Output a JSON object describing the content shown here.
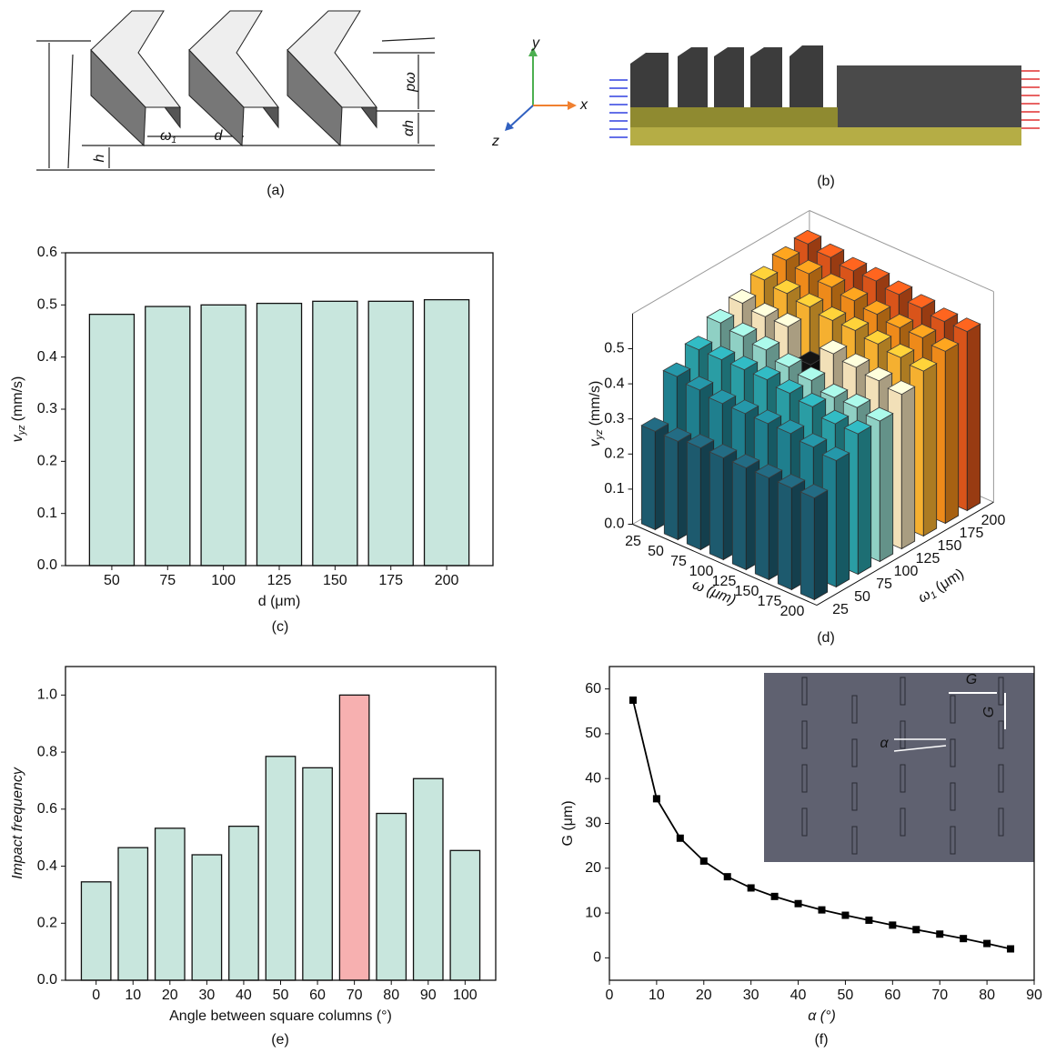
{
  "figure_a": {
    "caption": "(a)",
    "labels": {
      "w1": "ω",
      "w1_sub": "1",
      "d": "d",
      "pw": "pω",
      "ah": "αh",
      "h": "h"
    }
  },
  "figure_b": {
    "caption": "(b)",
    "axes": {
      "x": "x",
      "y": "y",
      "z": "z"
    }
  },
  "chart_data": [
    {
      "type": "bar",
      "caption": "(c)",
      "categories": [
        "50",
        "75",
        "100",
        "125",
        "150",
        "175",
        "200"
      ],
      "values": [
        0.482,
        0.497,
        0.5,
        0.503,
        0.507,
        0.507,
        0.51
      ],
      "color": "#c8e6dd",
      "ylim": [
        0,
        0.6
      ],
      "yticks": [
        {
          "value": 0,
          "label": "0.0"
        },
        0.1,
        0.2,
        0.3,
        0.4,
        0.5,
        0.6
      ],
      "x_label": "d (μm)",
      "y_label": "v",
      "y_label_sub": "yz",
      "y_label_unit": "(mm/s)"
    },
    {
      "type": "bar3d",
      "caption": "(d)",
      "x_categories": [
        "25",
        "50",
        "75",
        "100",
        "125",
        "150",
        "175",
        "200"
      ],
      "y_categories": [
        "25",
        "50",
        "75",
        "100",
        "125",
        "150",
        "175",
        "200"
      ],
      "values": [
        [
          0.28,
          0.28,
          0.29,
          0.29,
          0.29,
          0.29,
          0.29,
          0.29
        ],
        [
          0.4,
          0.39,
          0.38,
          0.38,
          0.38,
          0.38,
          0.37,
          0.36
        ],
        [
          0.44,
          0.44,
          0.44,
          0.44,
          0.43,
          0.42,
          0.4,
          0.4
        ],
        [
          0.48,
          0.47,
          0.46,
          0.44,
          0.43,
          0.41,
          0.41,
          0.4
        ],
        [
          0.5,
          0.49,
          0.49,
          0.41,
          0.47,
          0.46,
          0.45,
          0.44
        ],
        [
          0.53,
          0.52,
          0.51,
          0.5,
          0.5,
          0.49,
          0.48,
          0.47
        ],
        [
          0.55,
          0.54,
          0.53,
          0.52,
          0.51,
          0.5,
          0.5,
          0.49
        ],
        [
          0.56,
          0.55,
          0.54,
          0.54,
          0.53,
          0.52,
          0.51,
          0.51
        ]
      ],
      "row_colors": [
        "#1d5a6e",
        "#1f7f8e",
        "#2a9da4",
        "#8fd0c4",
        "#f2e0b8",
        "#f5b030",
        "#ee8a1a",
        "#d9541a"
      ],
      "highlight": [
        4,
        3
      ],
      "highlight_color": "#111111",
      "zlim": [
        0,
        0.6
      ],
      "zticks": [
        {
          "value": 0,
          "label": "0.0"
        },
        0.1,
        0.2,
        0.3,
        0.4,
        0.5
      ],
      "x_label": "ω (μm)",
      "y_label": "ω",
      "y_label_sub": "1",
      "y_label_unit": "(μm)",
      "z_label": "v",
      "z_label_sub": "yz",
      "z_label_unit": "(mm/s)"
    },
    {
      "type": "bar",
      "caption": "(e)",
      "categories": [
        "0",
        "10",
        "20",
        "30",
        "40",
        "50",
        "60",
        "70",
        "80",
        "90",
        "100"
      ],
      "values": [
        0.345,
        0.465,
        0.533,
        0.44,
        0.54,
        0.785,
        0.745,
        1.0,
        0.585,
        0.707,
        0.455
      ],
      "colors": [
        "#c8e6dd",
        "#c8e6dd",
        "#c8e6dd",
        "#c8e6dd",
        "#c8e6dd",
        "#c8e6dd",
        "#c8e6dd",
        "#f7b0b0",
        "#c8e6dd",
        "#c8e6dd",
        "#c8e6dd"
      ],
      "ylim": [
        0,
        1.1
      ],
      "yticks": [
        {
          "value": 0,
          "label": "0.0"
        },
        0.2,
        0.4,
        0.6,
        0.8,
        {
          "value": 1,
          "label": "1.0"
        }
      ],
      "x_label": "Angle between square columns (°)",
      "y_label": "Impact frequency"
    },
    {
      "type": "line",
      "caption": "(f)",
      "x": [
        5,
        10,
        15,
        20,
        25,
        30,
        35,
        40,
        45,
        50,
        55,
        60,
        65,
        70,
        75,
        80,
        85
      ],
      "values": [
        57.5,
        35.5,
        26.7,
        21.6,
        18.1,
        15.6,
        13.7,
        12.1,
        10.7,
        9.5,
        8.4,
        7.3,
        6.3,
        5.3,
        4.3,
        3.2,
        2.0
      ],
      "color": "#000000",
      "xlim": [
        0,
        90
      ],
      "xticks": [
        0,
        10,
        20,
        30,
        40,
        50,
        60,
        70,
        80,
        90
      ],
      "ylim": [
        -5,
        65
      ],
      "yticks": [
        0,
        10,
        20,
        30,
        40,
        50,
        60
      ],
      "x_label": "α (°)",
      "y_label": "G (μm)",
      "inset_labels": {
        "g_h": "G",
        "g_v": "G",
        "alpha": "α"
      }
    }
  ]
}
